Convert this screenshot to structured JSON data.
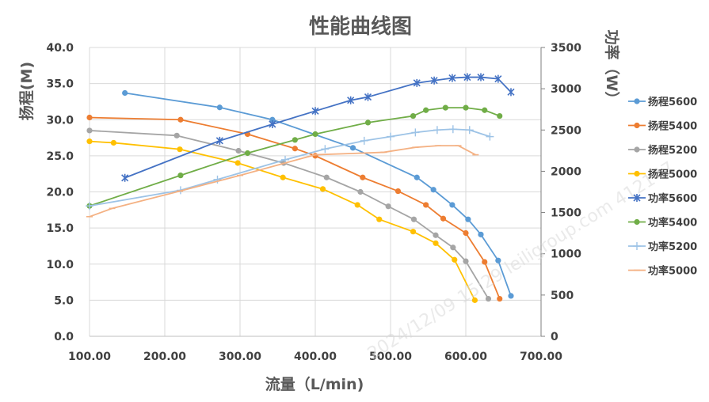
{
  "chart_data": {
    "type": "line",
    "title": "性能曲线图",
    "xlabel": "流量（L/min)",
    "ylabel": "扬程(M)",
    "y2label": "功率（W）",
    "xlim": [
      100,
      700
    ],
    "ylim": [
      0,
      40
    ],
    "y2lim": [
      0,
      3500
    ],
    "x_ticks": [
      "100.00",
      "200.00",
      "300.00",
      "400.00",
      "500.00",
      "600.00",
      "700.00"
    ],
    "y_ticks": [
      "0.0",
      "5.0",
      "10.0",
      "15.0",
      "20.0",
      "25.0",
      "30.0",
      "35.0",
      "40.0"
    ],
    "y2_ticks": [
      "0",
      "500",
      "1000",
      "1500",
      "2000",
      "2500",
      "3000",
      "3500"
    ],
    "grid": true,
    "legend_position": "right",
    "series": [
      {
        "name": "扬程5600",
        "axis": "left",
        "marker": "circle",
        "color": "#5b9bd5",
        "x": [
          147,
          273,
          343,
          450,
          535,
          557,
          582,
          603,
          620,
          643,
          660
        ],
        "y": [
          33.7,
          31.7,
          30.0,
          26.1,
          22.0,
          20.3,
          18.2,
          16.2,
          14.1,
          10.5,
          5.6
        ]
      },
      {
        "name": "扬程5400",
        "axis": "left",
        "marker": "circle",
        "color": "#ed7d31",
        "x": [
          100,
          221,
          310,
          373,
          400,
          463,
          510,
          547,
          570,
          600,
          625,
          645
        ],
        "y": [
          30.3,
          30.0,
          28.0,
          26.0,
          25.0,
          22.0,
          20.1,
          18.2,
          16.3,
          14.3,
          10.3,
          5.2
        ]
      },
      {
        "name": "扬程5200",
        "axis": "left",
        "marker": "circle",
        "color": "#a5a5a5",
        "x": [
          100,
          216,
          298,
          358,
          415,
          460,
          497,
          531,
          560,
          583,
          600,
          630
        ],
        "y": [
          28.5,
          27.8,
          25.7,
          24.0,
          22.0,
          20.0,
          18.0,
          16.2,
          14.0,
          12.3,
          10.4,
          5.2
        ]
      },
      {
        "name": "扬程5000",
        "axis": "left",
        "marker": "circle",
        "color": "#ffc000",
        "x": [
          100,
          132,
          220,
          297,
          357,
          410,
          456,
          485,
          530,
          560,
          585,
          612
        ],
        "y": [
          27.0,
          26.8,
          25.9,
          24.0,
          22.0,
          20.4,
          18.2,
          16.2,
          14.5,
          12.9,
          10.6,
          5.0
        ]
      },
      {
        "name": "功率5600",
        "axis": "right",
        "marker": "star",
        "color": "#4472c4",
        "x": [
          147,
          273,
          343,
          400,
          447,
          470,
          535,
          558,
          582,
          602,
          620,
          643,
          660
        ],
        "y": [
          1920,
          2370,
          2570,
          2730,
          2860,
          2900,
          3070,
          3100,
          3130,
          3140,
          3140,
          3120,
          2960
        ]
      },
      {
        "name": "功率5400",
        "axis": "right",
        "marker": "circle",
        "color": "#70ad47",
        "x": [
          100,
          221,
          310,
          373,
          400,
          470,
          530,
          547,
          573,
          600,
          625,
          645
        ],
        "y": [
          1580,
          1950,
          2220,
          2380,
          2450,
          2590,
          2670,
          2740,
          2770,
          2770,
          2740,
          2670
        ]
      },
      {
        "name": "功率5200",
        "axis": "right",
        "marker": "plus",
        "color": "#9dc3e6",
        "x": [
          100,
          221,
          270,
          360,
          413,
          465,
          500,
          533,
          562,
          583,
          605,
          632
        ],
        "y": [
          1580,
          1770,
          1900,
          2140,
          2270,
          2370,
          2420,
          2470,
          2500,
          2510,
          2500,
          2420
        ]
      },
      {
        "name": "功率5000",
        "axis": "right",
        "marker": "dash",
        "color": "#f4b183",
        "x": [
          100,
          130,
          220,
          300,
          400,
          462,
          491,
          533,
          563,
          590,
          613
        ],
        "y": [
          1450,
          1550,
          1760,
          1950,
          2200,
          2220,
          2230,
          2290,
          2310,
          2310,
          2200
        ]
      }
    ]
  },
  "watermark": "2024/12/09 15:29 leiligroup.com 412147"
}
